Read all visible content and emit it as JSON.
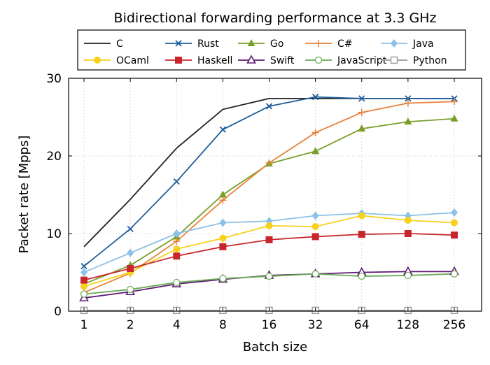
{
  "chart_data": {
    "type": "line",
    "title": "Bidirectional forwarding performance at 3.3 GHz",
    "xlabel": "Batch size",
    "ylabel": "Packet rate [Mpps]",
    "x_scale": "log2",
    "categories": [
      "1",
      "2",
      "4",
      "8",
      "16",
      "32",
      "64",
      "128",
      "256"
    ],
    "ylim": [
      0,
      30
    ],
    "yticks": [
      "0",
      "10",
      "20",
      "30"
    ],
    "grid": true,
    "legend_position": "top",
    "series": [
      {
        "name": "C",
        "color": "#222222",
        "marker": "none",
        "values": [
          8.3,
          14.4,
          21.0,
          26.0,
          27.4,
          27.4,
          27.4,
          27.4,
          27.4
        ]
      },
      {
        "name": "Rust",
        "color": "#1f5f9a",
        "marker": "x",
        "values": [
          5.8,
          10.6,
          16.7,
          23.4,
          26.4,
          27.6,
          27.4,
          27.4,
          27.4
        ]
      },
      {
        "name": "Go",
        "color": "#7a9e2a",
        "marker": "triangle",
        "values": [
          3.5,
          5.9,
          9.6,
          15.0,
          19.0,
          20.6,
          23.5,
          24.4,
          24.8
        ]
      },
      {
        "name": "C#",
        "color": "#e8833a",
        "marker": "plus",
        "values": [
          2.4,
          4.9,
          9.0,
          14.3,
          19.1,
          23.0,
          25.6,
          26.8,
          27.0
        ]
      },
      {
        "name": "Java",
        "color": "#8cc1e8",
        "marker": "diamond",
        "values": [
          5.0,
          7.5,
          10.0,
          11.4,
          11.6,
          12.3,
          12.6,
          12.3,
          12.7
        ]
      },
      {
        "name": "OCaml",
        "color": "#f7d11e",
        "marker": "circle",
        "values": [
          3.2,
          5.0,
          8.0,
          9.4,
          11.0,
          10.9,
          12.3,
          11.7,
          11.4
        ]
      },
      {
        "name": "Haskell",
        "color": "#c8262c",
        "marker": "square",
        "values": [
          4.0,
          5.5,
          7.1,
          8.3,
          9.2,
          9.6,
          9.9,
          10.0,
          9.8
        ]
      },
      {
        "name": "Swift",
        "color": "#5e1a73",
        "marker": "triangle-open",
        "values": [
          1.7,
          2.5,
          3.5,
          4.1,
          4.6,
          4.8,
          5.0,
          5.1,
          5.1
        ]
      },
      {
        "name": "JavaScript",
        "color": "#6aaa55",
        "marker": "circle-open",
        "values": [
          2.2,
          2.8,
          3.7,
          4.2,
          4.5,
          4.8,
          4.5,
          4.6,
          4.8
        ]
      },
      {
        "name": "Python",
        "color": "#9a9a9a",
        "marker": "square-open",
        "values": [
          0.1,
          0.1,
          0.1,
          0.1,
          0.1,
          0.1,
          0.1,
          0.1,
          0.1
        ]
      }
    ]
  }
}
